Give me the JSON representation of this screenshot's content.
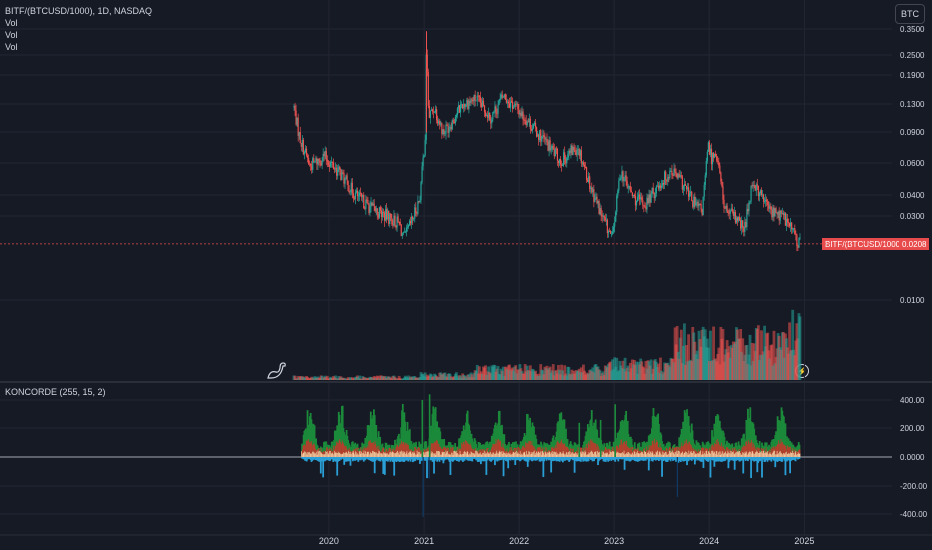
{
  "header": {
    "symbol_line": "BITF/(BTCUSD/1000), 1D, NASDAQ",
    "legend_lines": [
      "Vol",
      "Vol",
      "Vol"
    ],
    "currency_badge": "BTC"
  },
  "price_label": {
    "name": "BITF/(BTCUSD/1000)",
    "value": "0.0208"
  },
  "indicator": {
    "title": "KONCORDE (255, 15, 2)"
  },
  "colors": {
    "background": "#161a25",
    "grid": "#232632",
    "up": "#26a69a",
    "down": "#ef5350",
    "k_green": "#1b8a3a",
    "k_red": "#c0392b",
    "k_tan": "#f5c6a0",
    "k_blue": "#2a9fd6",
    "k_dark": "#0d3b66",
    "price_line": "#e84b4b",
    "text": "#d1d4dc"
  },
  "icons": {
    "logo": "tradingview-dino-icon",
    "bolt": "lightning-bolt-icon"
  },
  "chart_data": {
    "type": "candlestick",
    "price_scale": "log",
    "price_ticks": [
      "0.3500",
      "0.2500",
      "0.1900",
      "0.1300",
      "0.0900",
      "0.0600",
      "0.0400",
      "0.0300"
    ],
    "volume_ticks": [
      "0.0100"
    ],
    "indicator_ticks": [
      "400.00",
      "200.00",
      "0.0000",
      "-200.00",
      "-400.00"
    ],
    "x_ticks": [
      "2020",
      "2021",
      "2022",
      "2023",
      "2024",
      "2025"
    ],
    "x_range": [
      "2019-08-20",
      "2024-12-15"
    ],
    "price_anchors": [
      [
        "2019-08-20",
        0.125
      ],
      [
        "2019-09-10",
        0.085
      ],
      [
        "2019-10-20",
        0.058
      ],
      [
        "2019-12-15",
        0.066
      ],
      [
        "2020-02-15",
        0.052
      ],
      [
        "2020-04-10",
        0.04
      ],
      [
        "2020-06-15",
        0.033
      ],
      [
        "2020-08-10",
        0.03
      ],
      [
        "2020-09-28",
        0.027
      ],
      [
        "2020-10-15",
        0.022
      ],
      [
        "2020-11-15",
        0.028
      ],
      [
        "2020-12-15",
        0.038
      ],
      [
        "2021-01-05",
        0.085
      ],
      [
        "2021-01-10",
        0.3
      ],
      [
        "2021-01-18",
        0.11
      ],
      [
        "2021-02-10",
        0.125
      ],
      [
        "2021-03-15",
        0.09
      ],
      [
        "2021-04-20",
        0.105
      ],
      [
        "2021-05-25",
        0.13
      ],
      [
        "2021-07-20",
        0.14
      ],
      [
        "2021-09-15",
        0.11
      ],
      [
        "2021-11-01",
        0.145
      ],
      [
        "2021-12-20",
        0.125
      ],
      [
        "2022-02-15",
        0.1
      ],
      [
        "2022-04-10",
        0.08
      ],
      [
        "2022-06-10",
        0.062
      ],
      [
        "2022-08-15",
        0.075
      ],
      [
        "2022-10-01",
        0.045
      ],
      [
        "2022-11-15",
        0.03
      ],
      [
        "2022-12-25",
        0.022
      ],
      [
        "2023-01-25",
        0.055
      ],
      [
        "2023-03-15",
        0.038
      ],
      [
        "2023-05-01",
        0.035
      ],
      [
        "2023-06-20",
        0.045
      ],
      [
        "2023-08-10",
        0.055
      ],
      [
        "2023-09-25",
        0.045
      ],
      [
        "2023-11-05",
        0.035
      ],
      [
        "2023-12-05",
        0.032
      ],
      [
        "2023-12-28",
        0.075
      ],
      [
        "2024-01-10",
        0.065
      ],
      [
        "2024-01-28",
        0.07
      ],
      [
        "2024-03-01",
        0.033
      ],
      [
        "2024-04-20",
        0.028
      ],
      [
        "2024-05-15",
        0.025
      ],
      [
        "2024-06-15",
        0.048
      ],
      [
        "2024-07-15",
        0.04
      ],
      [
        "2024-08-25",
        0.032
      ],
      [
        "2024-10-10",
        0.03
      ],
      [
        "2024-11-10",
        0.026
      ],
      [
        "2024-12-10",
        0.0208
      ]
    ],
    "last_price": 0.0208,
    "volume_max": 0.0135,
    "indicator_range": [
      -450,
      450
    ]
  }
}
